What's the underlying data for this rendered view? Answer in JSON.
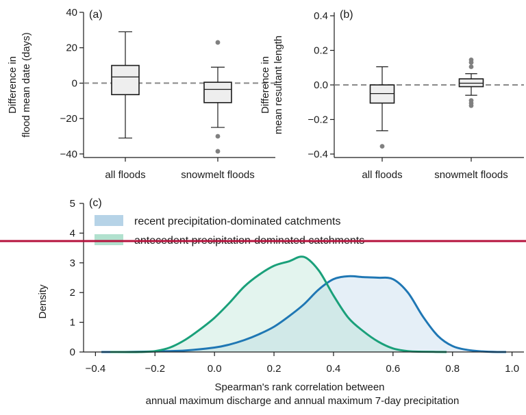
{
  "colors": {
    "recent": "#1f77b4",
    "recent_fill": "#a9cbe3",
    "antecedent": "#1aa07a",
    "antecedent_fill": "#a3dcc6",
    "box_fill": "#eeeeee",
    "zero_line": "#888888",
    "overlay_line": "#b5123c"
  },
  "chart_data": [
    {
      "type": "box",
      "panel_label": "(a)",
      "categories": [
        "all floods",
        "snowmelt floods"
      ],
      "ylabel": [
        "Difference in",
        "flood mean date (days)"
      ],
      "ylim": [
        -42,
        40
      ],
      "yticks": [
        -40,
        -20,
        0,
        20,
        40
      ],
      "reference_line": 0,
      "boxes": [
        {
          "whisker_low": -31,
          "q1": -6.5,
          "median": 3.5,
          "q3": 10,
          "whisker_high": 29,
          "outliers": []
        },
        {
          "whisker_low": -25,
          "q1": -11,
          "median": -3.5,
          "q3": 0.5,
          "whisker_high": 9,
          "outliers": [
            23,
            -30,
            -38.5
          ]
        }
      ]
    },
    {
      "type": "box",
      "panel_label": "(b)",
      "categories": [
        "all floods",
        "snowmelt floods"
      ],
      "ylabel": [
        "Difference in",
        "mean resultant length"
      ],
      "ylim": [
        -0.42,
        0.42
      ],
      "yticks": [
        -0.4,
        -0.2,
        0.0,
        0.2,
        0.4
      ],
      "ytick_labels": [
        "−0.4",
        "−0.2",
        "0.0",
        "0.2",
        "0.4"
      ],
      "reference_line": 0,
      "boxes": [
        {
          "whisker_low": -0.265,
          "q1": -0.105,
          "median": -0.05,
          "q3": 0.0,
          "whisker_high": 0.105,
          "outliers": [
            -0.355
          ]
        },
        {
          "whisker_low": -0.06,
          "q1": -0.01,
          "median": 0.01,
          "q3": 0.035,
          "whisker_high": 0.065,
          "outliers": [
            0.105,
            0.13,
            0.145,
            -0.09,
            -0.105,
            -0.12
          ]
        }
      ]
    },
    {
      "type": "area",
      "panel_label": "(c)",
      "xlabel": [
        "Spearman's rank correlation between",
        "annual maximum discharge and annual maximum 7-day precipitation"
      ],
      "ylabel": "Density",
      "xlim": [
        -0.44,
        1.04
      ],
      "ylim": [
        0,
        5
      ],
      "xticks": [
        -0.4,
        -0.2,
        0.0,
        0.2,
        0.4,
        0.6,
        0.8,
        1.0
      ],
      "xtick_labels": [
        "−0.4",
        "−0.2",
        "0.0",
        "0.2",
        "0.4",
        "0.6",
        "0.8",
        "1.0"
      ],
      "yticks": [
        0,
        1,
        2,
        3,
        4,
        5
      ],
      "legend_position": "top-left",
      "series": [
        {
          "name": "recent precipitation-dominated catchments",
          "x": [
            -0.38,
            -0.3,
            -0.2,
            -0.1,
            0.0,
            0.05,
            0.1,
            0.15,
            0.2,
            0.25,
            0.3,
            0.35,
            0.4,
            0.45,
            0.5,
            0.55,
            0.6,
            0.65,
            0.7,
            0.75,
            0.8,
            0.85,
            0.9,
            0.95,
            0.98
          ],
          "y": [
            0.0,
            0.0,
            0.02,
            0.05,
            0.15,
            0.25,
            0.4,
            0.6,
            0.85,
            1.2,
            1.6,
            2.1,
            2.45,
            2.55,
            2.52,
            2.5,
            2.45,
            2.0,
            1.2,
            0.55,
            0.2,
            0.07,
            0.02,
            0.0,
            0.0
          ]
        },
        {
          "name": "antecedent precipitation-dominated catchments",
          "x": [
            -0.35,
            -0.25,
            -0.2,
            -0.15,
            -0.1,
            -0.05,
            0.0,
            0.05,
            0.1,
            0.15,
            0.2,
            0.25,
            0.3,
            0.35,
            0.4,
            0.45,
            0.5,
            0.55,
            0.6,
            0.65,
            0.7,
            0.78
          ],
          "y": [
            0.0,
            0.0,
            0.03,
            0.15,
            0.4,
            0.75,
            1.15,
            1.65,
            2.2,
            2.6,
            2.9,
            3.05,
            3.2,
            2.75,
            1.9,
            1.15,
            0.7,
            0.35,
            0.12,
            0.03,
            0.01,
            0.0
          ]
        }
      ]
    }
  ]
}
